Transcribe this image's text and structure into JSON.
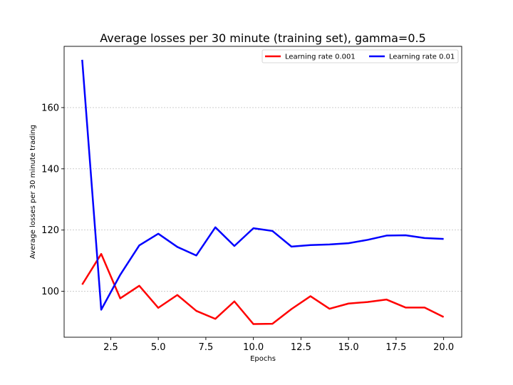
{
  "chart_data": {
    "type": "line",
    "title": "Average losses per 30 minute (training set), gamma=0.5",
    "xlabel": "Epochs",
    "ylabel": "Average losses per 30 minute trading",
    "xlim": [
      0.05,
      20.95
    ],
    "ylim": [
      85,
      180
    ],
    "xticks": [
      2.5,
      5.0,
      7.5,
      10.0,
      12.5,
      15.0,
      17.5,
      20.0
    ],
    "xtick_labels": [
      "2.5",
      "5.0",
      "7.5",
      "10.0",
      "12.5",
      "15.0",
      "17.5",
      "20.0"
    ],
    "yticks": [
      100,
      120,
      140,
      160
    ],
    "ytick_labels": [
      "100",
      "120",
      "140",
      "160"
    ],
    "grid": "horizontal-dashed",
    "legend": "top-right",
    "x": [
      1,
      2,
      3,
      4,
      5,
      6,
      7,
      8,
      9,
      10,
      11,
      12,
      13,
      14,
      15,
      16,
      17,
      18,
      19,
      20
    ],
    "series": [
      {
        "name": "Learning rate 0.001",
        "color": "#ff0000",
        "values": [
          102.2,
          112.2,
          97.7,
          101.8,
          94.6,
          98.8,
          93.6,
          91.0,
          96.7,
          89.3,
          89.4,
          94.2,
          98.4,
          94.3,
          96.0,
          96.5,
          97.3,
          94.7,
          94.7,
          91.6
        ]
      },
      {
        "name": "Learning rate 0.01",
        "color": "#0000ff",
        "values": [
          175.6,
          94.0,
          105.4,
          115.0,
          118.8,
          114.5,
          111.7,
          120.9,
          114.8,
          120.6,
          119.7,
          114.6,
          115.1,
          115.3,
          115.7,
          116.8,
          118.2,
          118.3,
          117.4,
          117.1
        ]
      }
    ]
  }
}
